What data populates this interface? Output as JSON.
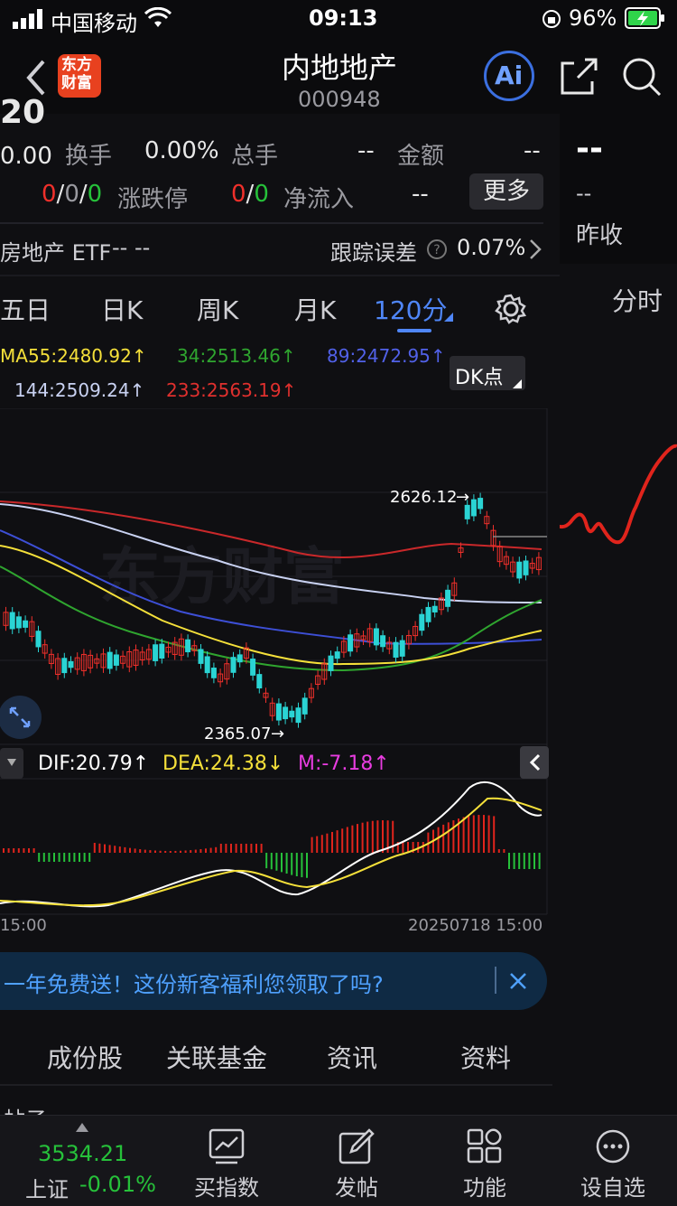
{
  "status": {
    "carrier": "中国移动",
    "time": "09:13",
    "battery": "96%"
  },
  "header": {
    "title": "内地地产",
    "code": "000948"
  },
  "quote": {
    "partial_price": "20",
    "change": "0.00",
    "turnover_label": "换手",
    "turnover_value": "0.00%",
    "volume_label": "总手",
    "volume_value": "--",
    "amount_label": "金额",
    "amount_value": "--",
    "updown": [
      "0",
      "/",
      "0",
      "/",
      "0"
    ],
    "limit_label": "涨跌停",
    "limit_values": [
      "0",
      "/",
      "0"
    ],
    "inflow_label": "净流入",
    "inflow_value": "--",
    "more_label": "更多"
  },
  "side": {
    "price": "--",
    "sub": "--",
    "prev_label": "昨收",
    "intraday_label": "分时"
  },
  "etf": {
    "name": "房地产 ETF",
    "value": "-- --",
    "tracking_label": "跟踪误差",
    "tracking_value": "0.07%"
  },
  "period_tabs": [
    "五日",
    "日K",
    "周K",
    "月K",
    "120分"
  ],
  "ma": {
    "ma55": "MA55:2480.92↑",
    "ma34": "34:2513.46↑",
    "ma89": "89:2472.95↑",
    "ma144": "144:2509.24↑",
    "ma233": "233:2563.19↑",
    "dk_label": "DK点"
  },
  "chart_data": {
    "type": "candlestick",
    "high_label": "2626.12",
    "low_label": "2365.07",
    "watermark": "东方财富",
    "ma_colors": {
      "ma55": "#f5e03a",
      "ma34": "#2fa52f",
      "ma89": "#3d4fd6",
      "ma144": "#c9d2f2",
      "ma233": "#c9282a"
    },
    "macd": {
      "dif": "DIF:20.79↑",
      "dea": "DEA:24.38↓",
      "m": "M:-7.18↑"
    },
    "x_label_left": "15:00",
    "x_label_right": "20250718 15:00"
  },
  "banner": {
    "text": "一年免费送！这份新客福利您领取了吗?"
  },
  "section_tabs": [
    "成份股",
    "关联基金",
    "资讯",
    "资料"
  ],
  "partial_text": "帖子",
  "bottom": {
    "index_value": "3534.21",
    "index_name": "上证",
    "index_change": "-0.01%",
    "items": [
      "买指数",
      "发帖",
      "功能",
      "设自选"
    ]
  }
}
